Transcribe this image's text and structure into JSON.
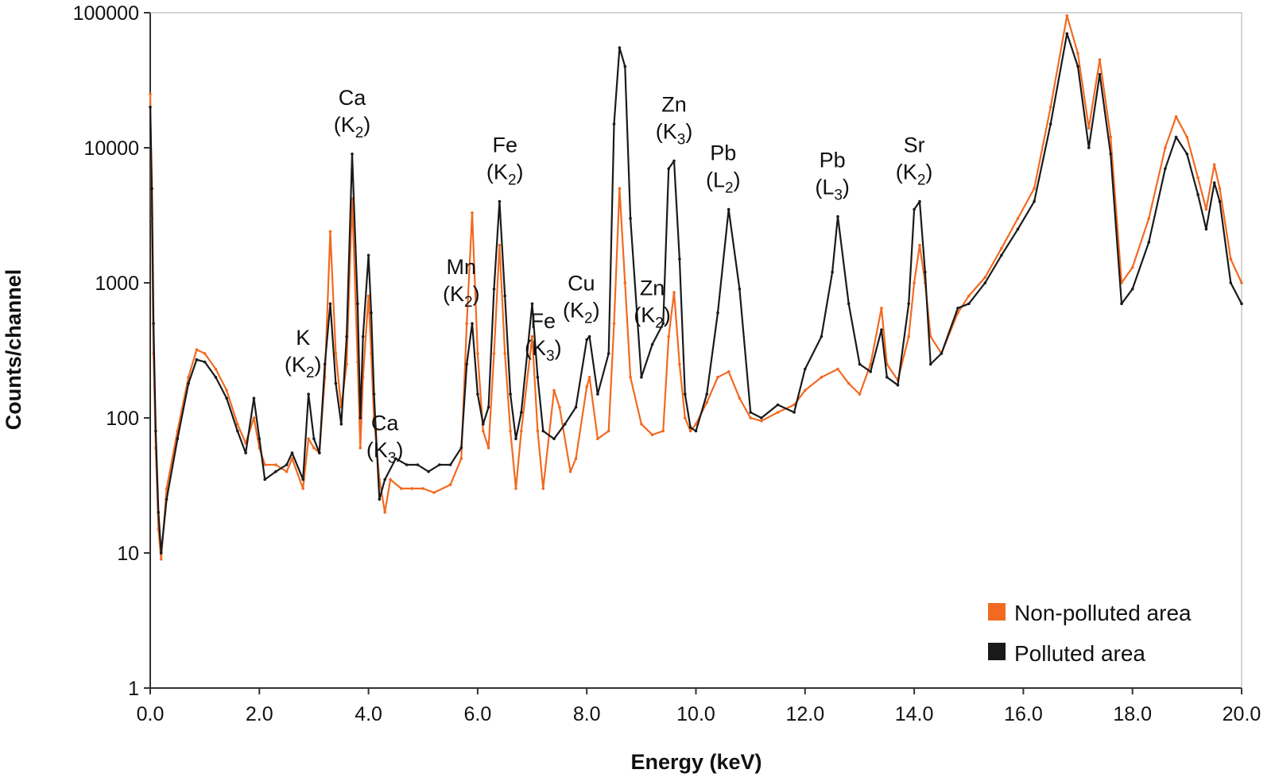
{
  "chart_data": {
    "type": "line",
    "title": "",
    "xlabel": "Energy (keV)",
    "ylabel": "Counts/channel",
    "yscale": "log",
    "xlim": [
      0,
      20
    ],
    "ylim": [
      1,
      100000
    ],
    "xticks": [
      "0.0",
      "2.0",
      "4.0",
      "6.0",
      "8.0",
      "10.0",
      "12.0",
      "14.0",
      "16.0",
      "18.0",
      "20.0"
    ],
    "yticks": [
      "1",
      "10",
      "100",
      "1000",
      "10000",
      "100000"
    ],
    "grid": false,
    "legend_position": "bottom-right",
    "series": [
      {
        "name": "Non-polluted area",
        "color": "#f26a21",
        "points": [
          [
            0.0,
            25000
          ],
          [
            0.03,
            3000
          ],
          [
            0.06,
            300
          ],
          [
            0.1,
            60
          ],
          [
            0.15,
            15
          ],
          [
            0.2,
            9
          ],
          [
            0.3,
            30
          ],
          [
            0.5,
            80
          ],
          [
            0.7,
            200
          ],
          [
            0.85,
            320
          ],
          [
            1.0,
            300
          ],
          [
            1.2,
            230
          ],
          [
            1.4,
            160
          ],
          [
            1.6,
            90
          ],
          [
            1.75,
            65
          ],
          [
            1.9,
            100
          ],
          [
            2.0,
            60
          ],
          [
            2.1,
            45
          ],
          [
            2.3,
            45
          ],
          [
            2.5,
            40
          ],
          [
            2.6,
            50
          ],
          [
            2.8,
            30
          ],
          [
            2.9,
            70
          ],
          [
            3.0,
            60
          ],
          [
            3.1,
            55
          ],
          [
            3.2,
            200
          ],
          [
            3.3,
            2400
          ],
          [
            3.4,
            300
          ],
          [
            3.5,
            120
          ],
          [
            3.6,
            250
          ],
          [
            3.7,
            4200
          ],
          [
            3.8,
            260
          ],
          [
            3.85,
            60
          ],
          [
            3.9,
            200
          ],
          [
            4.0,
            800
          ],
          [
            4.05,
            300
          ],
          [
            4.1,
            100
          ],
          [
            4.2,
            35
          ],
          [
            4.3,
            20
          ],
          [
            4.4,
            35
          ],
          [
            4.6,
            30
          ],
          [
            4.8,
            30
          ],
          [
            5.0,
            30
          ],
          [
            5.2,
            28
          ],
          [
            5.5,
            32
          ],
          [
            5.7,
            50
          ],
          [
            5.8,
            500
          ],
          [
            5.9,
            3300
          ],
          [
            6.0,
            300
          ],
          [
            6.1,
            80
          ],
          [
            6.2,
            60
          ],
          [
            6.3,
            300
          ],
          [
            6.4,
            1900
          ],
          [
            6.5,
            300
          ],
          [
            6.6,
            80
          ],
          [
            6.7,
            30
          ],
          [
            6.8,
            80
          ],
          [
            7.0,
            400
          ],
          [
            7.1,
            80
          ],
          [
            7.2,
            30
          ],
          [
            7.4,
            160
          ],
          [
            7.5,
            120
          ],
          [
            7.7,
            40
          ],
          [
            7.8,
            50
          ],
          [
            8.0,
            170
          ],
          [
            8.05,
            200
          ],
          [
            8.2,
            70
          ],
          [
            8.4,
            80
          ],
          [
            8.5,
            500
          ],
          [
            8.6,
            5000
          ],
          [
            8.7,
            1000
          ],
          [
            8.8,
            200
          ],
          [
            9.0,
            90
          ],
          [
            9.2,
            75
          ],
          [
            9.4,
            80
          ],
          [
            9.5,
            400
          ],
          [
            9.6,
            850
          ],
          [
            9.7,
            250
          ],
          [
            9.8,
            100
          ],
          [
            9.9,
            80
          ],
          [
            10.0,
            90
          ],
          [
            10.2,
            130
          ],
          [
            10.4,
            200
          ],
          [
            10.6,
            220
          ],
          [
            10.8,
            140
          ],
          [
            11.0,
            100
          ],
          [
            11.2,
            95
          ],
          [
            11.5,
            110
          ],
          [
            11.8,
            125
          ],
          [
            12.0,
            160
          ],
          [
            12.3,
            200
          ],
          [
            12.6,
            230
          ],
          [
            12.8,
            180
          ],
          [
            13.0,
            150
          ],
          [
            13.2,
            250
          ],
          [
            13.4,
            650
          ],
          [
            13.5,
            250
          ],
          [
            13.7,
            190
          ],
          [
            13.9,
            400
          ],
          [
            14.0,
            1000
          ],
          [
            14.1,
            1900
          ],
          [
            14.2,
            1000
          ],
          [
            14.3,
            400
          ],
          [
            14.5,
            300
          ],
          [
            14.8,
            600
          ],
          [
            15.0,
            800
          ],
          [
            15.3,
            1100
          ],
          [
            15.6,
            1800
          ],
          [
            15.9,
            3000
          ],
          [
            16.2,
            5000
          ],
          [
            16.5,
            20000
          ],
          [
            16.8,
            95000
          ],
          [
            17.0,
            50000
          ],
          [
            17.2,
            14000
          ],
          [
            17.4,
            45000
          ],
          [
            17.6,
            12000
          ],
          [
            17.8,
            1000
          ],
          [
            18.0,
            1300
          ],
          [
            18.3,
            3000
          ],
          [
            18.6,
            10000
          ],
          [
            18.8,
            17000
          ],
          [
            19.0,
            12000
          ],
          [
            19.2,
            6000
          ],
          [
            19.35,
            3500
          ],
          [
            19.5,
            7500
          ],
          [
            19.6,
            5000
          ],
          [
            19.8,
            1500
          ],
          [
            20.0,
            1000
          ]
        ]
      },
      {
        "name": "Polluted area",
        "color": "#1a1a1a",
        "points": [
          [
            0.0,
            20000
          ],
          [
            0.03,
            5000
          ],
          [
            0.06,
            500
          ],
          [
            0.1,
            80
          ],
          [
            0.15,
            20
          ],
          [
            0.2,
            10
          ],
          [
            0.3,
            25
          ],
          [
            0.5,
            70
          ],
          [
            0.7,
            180
          ],
          [
            0.85,
            270
          ],
          [
            1.0,
            260
          ],
          [
            1.2,
            200
          ],
          [
            1.4,
            140
          ],
          [
            1.6,
            80
          ],
          [
            1.75,
            55
          ],
          [
            1.9,
            140
          ],
          [
            2.0,
            70
          ],
          [
            2.1,
            35
          ],
          [
            2.3,
            40
          ],
          [
            2.5,
            45
          ],
          [
            2.6,
            55
          ],
          [
            2.8,
            35
          ],
          [
            2.9,
            150
          ],
          [
            3.0,
            70
          ],
          [
            3.1,
            55
          ],
          [
            3.2,
            250
          ],
          [
            3.3,
            700
          ],
          [
            3.4,
            180
          ],
          [
            3.5,
            90
          ],
          [
            3.6,
            400
          ],
          [
            3.7,
            9000
          ],
          [
            3.8,
            700
          ],
          [
            3.85,
            100
          ],
          [
            3.9,
            400
          ],
          [
            4.0,
            1600
          ],
          [
            4.05,
            600
          ],
          [
            4.1,
            150
          ],
          [
            4.2,
            25
          ],
          [
            4.3,
            35
          ],
          [
            4.5,
            50
          ],
          [
            4.7,
            45
          ],
          [
            4.9,
            45
          ],
          [
            5.1,
            40
          ],
          [
            5.3,
            45
          ],
          [
            5.5,
            45
          ],
          [
            5.7,
            60
          ],
          [
            5.8,
            250
          ],
          [
            5.9,
            500
          ],
          [
            6.0,
            150
          ],
          [
            6.1,
            90
          ],
          [
            6.2,
            120
          ],
          [
            6.3,
            900
          ],
          [
            6.4,
            4000
          ],
          [
            6.5,
            800
          ],
          [
            6.6,
            150
          ],
          [
            6.7,
            70
          ],
          [
            6.8,
            110
          ],
          [
            7.0,
            700
          ],
          [
            7.1,
            200
          ],
          [
            7.2,
            80
          ],
          [
            7.4,
            70
          ],
          [
            7.6,
            90
          ],
          [
            7.8,
            120
          ],
          [
            8.0,
            380
          ],
          [
            8.05,
            400
          ],
          [
            8.2,
            150
          ],
          [
            8.4,
            300
          ],
          [
            8.5,
            15000
          ],
          [
            8.6,
            55000
          ],
          [
            8.7,
            40000
          ],
          [
            8.8,
            3000
          ],
          [
            9.0,
            200
          ],
          [
            9.2,
            350
          ],
          [
            9.4,
            500
          ],
          [
            9.5,
            7000
          ],
          [
            9.6,
            8000
          ],
          [
            9.7,
            1500
          ],
          [
            9.8,
            150
          ],
          [
            9.9,
            85
          ],
          [
            10.0,
            80
          ],
          [
            10.2,
            150
          ],
          [
            10.4,
            600
          ],
          [
            10.6,
            3500
          ],
          [
            10.8,
            900
          ],
          [
            11.0,
            110
          ],
          [
            11.2,
            100
          ],
          [
            11.5,
            125
          ],
          [
            11.8,
            110
          ],
          [
            12.0,
            230
          ],
          [
            12.3,
            400
          ],
          [
            12.5,
            1200
          ],
          [
            12.6,
            3100
          ],
          [
            12.8,
            700
          ],
          [
            13.0,
            250
          ],
          [
            13.2,
            220
          ],
          [
            13.4,
            450
          ],
          [
            13.5,
            200
          ],
          [
            13.7,
            175
          ],
          [
            13.9,
            700
          ],
          [
            14.0,
            3500
          ],
          [
            14.1,
            4000
          ],
          [
            14.2,
            1200
          ],
          [
            14.3,
            250
          ],
          [
            14.5,
            300
          ],
          [
            14.8,
            650
          ],
          [
            15.0,
            700
          ],
          [
            15.3,
            1000
          ],
          [
            15.6,
            1600
          ],
          [
            15.9,
            2500
          ],
          [
            16.2,
            4000
          ],
          [
            16.5,
            15000
          ],
          [
            16.8,
            70000
          ],
          [
            17.0,
            40000
          ],
          [
            17.2,
            10000
          ],
          [
            17.4,
            35000
          ],
          [
            17.6,
            9000
          ],
          [
            17.8,
            700
          ],
          [
            18.0,
            900
          ],
          [
            18.3,
            2000
          ],
          [
            18.6,
            7000
          ],
          [
            18.8,
            12000
          ],
          [
            19.0,
            9000
          ],
          [
            19.2,
            4500
          ],
          [
            19.35,
            2500
          ],
          [
            19.5,
            5500
          ],
          [
            19.6,
            4000
          ],
          [
            19.8,
            1000
          ],
          [
            20.0,
            700
          ]
        ]
      }
    ],
    "annotations": [
      {
        "element": "K",
        "line": "K",
        "sub": "2",
        "energy": 2.8
      },
      {
        "element": "Ca",
        "line": "K",
        "sub": "2",
        "energy": 3.7
      },
      {
        "element": "Ca",
        "line": "K",
        "sub": "3",
        "energy": 4.3
      },
      {
        "element": "Mn",
        "line": "K",
        "sub": "2",
        "energy": 5.7
      },
      {
        "element": "Fe",
        "line": "K",
        "sub": "2",
        "energy": 6.5
      },
      {
        "element": "Fe",
        "line": "K",
        "sub": "3",
        "energy": 7.2
      },
      {
        "element": "Cu",
        "line": "K",
        "sub": "2",
        "energy": 7.9
      },
      {
        "element": "Zn",
        "line": "K",
        "sub": "2",
        "energy": 9.2
      },
      {
        "element": "Zn",
        "line": "K",
        "sub": "3",
        "energy": 9.6
      },
      {
        "element": "Pb",
        "line": "L",
        "sub": "2",
        "energy": 10.5
      },
      {
        "element": "Pb",
        "line": "L",
        "sub": "3",
        "energy": 12.5
      },
      {
        "element": "Sr",
        "line": "K",
        "sub": "2",
        "energy": 14.0
      }
    ]
  }
}
